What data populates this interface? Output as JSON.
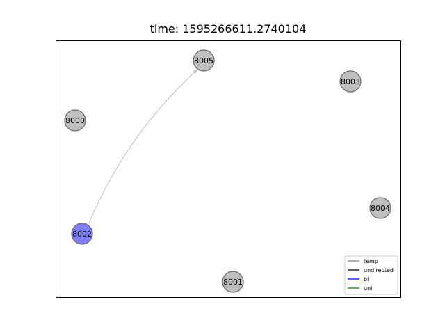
{
  "title": "time: 1595266611.2740104",
  "nodes": [
    {
      "id": "8005",
      "color": "#bfbfbf"
    },
    {
      "id": "8003",
      "color": "#bfbfbf"
    },
    {
      "id": "8000",
      "color": "#bfbfbf"
    },
    {
      "id": "8004",
      "color": "#bfbfbf"
    },
    {
      "id": "8002",
      "color": "#8080ff"
    },
    {
      "id": "8001",
      "color": "#bfbfbf"
    }
  ],
  "edges": [
    {
      "from": "8002",
      "to": "8005",
      "type": "temp",
      "color": "#c0c0c0"
    }
  ],
  "legend": [
    {
      "label": "temp",
      "color": "#808080"
    },
    {
      "label": "undirected",
      "color": "#000000"
    },
    {
      "label": "bi",
      "color": "#0000ff"
    },
    {
      "label": "uni",
      "color": "#008000"
    }
  ]
}
